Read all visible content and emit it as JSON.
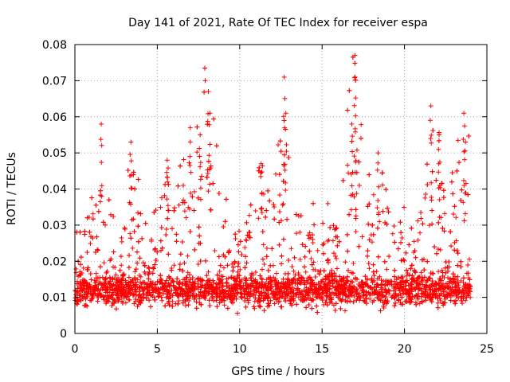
{
  "chart_data": {
    "type": "scatter",
    "title": "Day 141 of 2021, Rate Of TEC Index for receiver espa",
    "xlabel": "GPS time / hours",
    "ylabel": "ROTI / TECUs",
    "xlim": [
      0,
      25
    ],
    "ylim": [
      0,
      0.08
    ],
    "x_ticks": [
      0,
      5,
      10,
      15,
      20,
      25
    ],
    "x_tick_labels": [
      "0",
      "5",
      "10",
      "15",
      "20",
      "25"
    ],
    "y_ticks": [
      0,
      0.01,
      0.02,
      0.03,
      0.04,
      0.05,
      0.06,
      0.07,
      0.08
    ],
    "y_tick_labels": [
      "0",
      "0.01",
      "0.02",
      "0.03",
      "0.04",
      "0.05",
      "0.06",
      "0.07",
      "0.08"
    ],
    "grid": true,
    "marker": "+",
    "color": "#ff0000",
    "series": [
      {
        "name": "ROTI",
        "data_range_hours": [
          0,
          24
        ],
        "base_level": 0.012,
        "notable_peaks": [
          {
            "x": 1.6,
            "y": 0.058
          },
          {
            "x": 3.4,
            "y": 0.053
          },
          {
            "x": 5.6,
            "y": 0.048
          },
          {
            "x": 7.0,
            "y": 0.057
          },
          {
            "x": 7.6,
            "y": 0.055
          },
          {
            "x": 8.1,
            "y": 0.067
          },
          {
            "x": 8.2,
            "y": 0.061
          },
          {
            "x": 11.3,
            "y": 0.047
          },
          {
            "x": 12.7,
            "y": 0.071
          },
          {
            "x": 12.8,
            "y": 0.061
          },
          {
            "x": 16.8,
            "y": 0.058
          },
          {
            "x": 17.0,
            "y": 0.077
          },
          {
            "x": 17.0,
            "y": 0.071
          },
          {
            "x": 18.4,
            "y": 0.05
          },
          {
            "x": 21.6,
            "y": 0.063
          },
          {
            "x": 22.1,
            "y": 0.055
          },
          {
            "x": 23.6,
            "y": 0.061
          },
          {
            "x": 23.7,
            "y": 0.053
          }
        ]
      }
    ]
  }
}
